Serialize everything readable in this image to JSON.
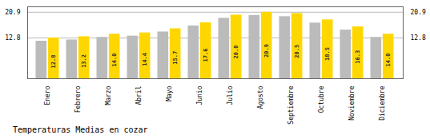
{
  "chart_data": {
    "type": "bar",
    "title": "Temperaturas Medias en cozar",
    "categories": [
      "Enero",
      "Febrero",
      "Marzo",
      "Abril",
      "Mayo",
      "Junio",
      "Julio",
      "Agosto",
      "Septiembre",
      "Octubre",
      "Noviembre",
      "Diciembre"
    ],
    "series": [
      {
        "color": "#BBBBBB",
        "values": [
          11.8,
          12.2,
          13.0,
          13.4,
          14.7,
          16.6,
          19.0,
          19.9,
          19.5,
          17.5,
          15.3,
          13.0
        ]
      },
      {
        "color": "#FFD700",
        "values": [
          12.8,
          13.2,
          14.0,
          14.4,
          15.7,
          17.6,
          20.0,
          20.9,
          20.5,
          18.5,
          16.3,
          14.0
        ],
        "data_labels": true,
        "value_labels": [
          "12.8",
          "13.2",
          "14.0",
          "14.4",
          "15.7",
          "17.6",
          "20.0",
          "20.9",
          "20.5",
          "18.5",
          "16.3",
          "14.0"
        ]
      }
    ],
    "ylim": [
      0,
      22.6
    ],
    "yticks": [
      12.8,
      20.9
    ],
    "grid": true
  }
}
